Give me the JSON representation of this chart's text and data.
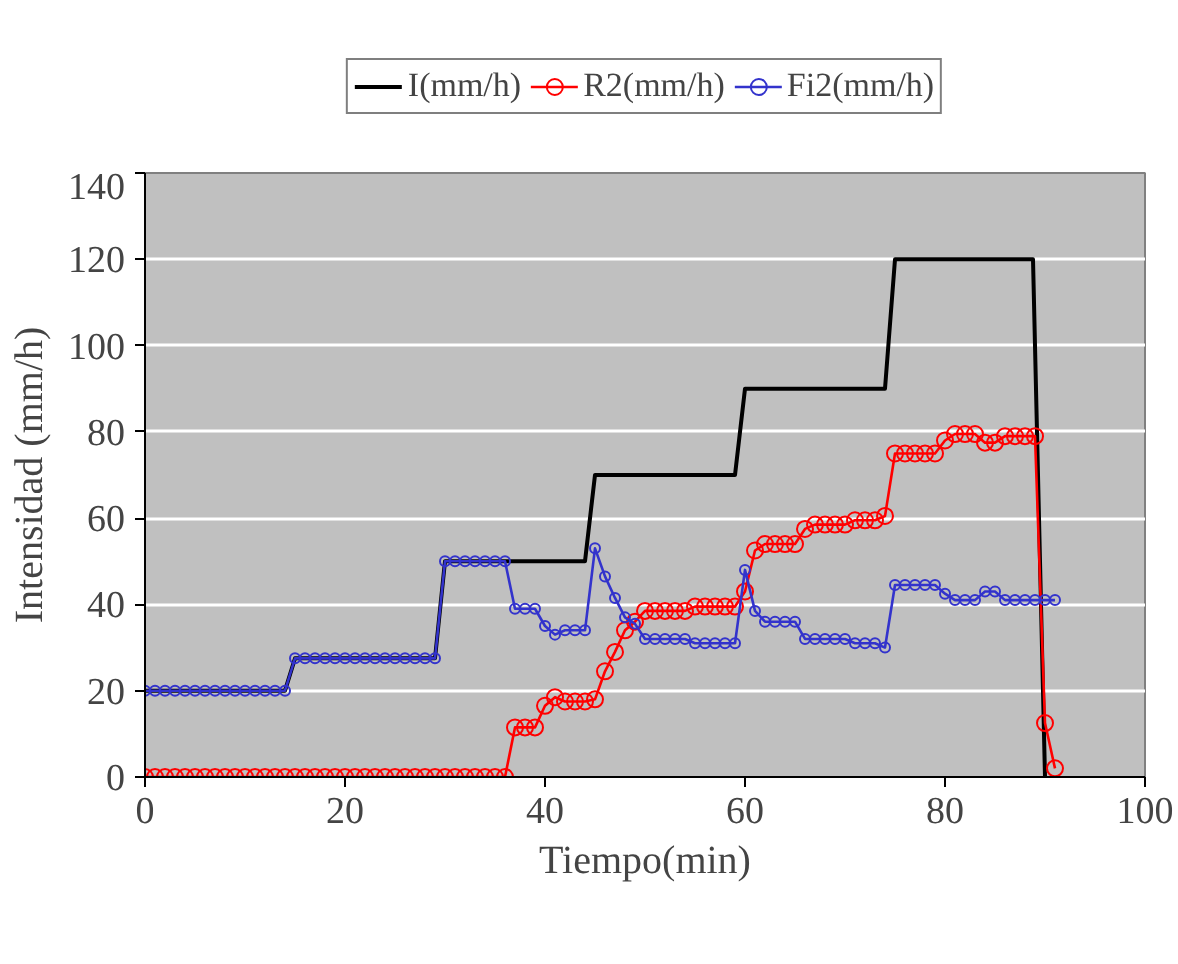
{
  "chart_data": {
    "type": "line",
    "xlabel": "Tiempo(min)",
    "ylabel": "Intensidad (mm/h)",
    "xlim": [
      0,
      100
    ],
    "ylim": [
      0,
      140
    ],
    "xticks": [
      0,
      20,
      40,
      60,
      80,
      100
    ],
    "yticks": [
      0,
      20,
      40,
      60,
      80,
      100,
      120,
      140
    ],
    "grid": "y",
    "legend": "top",
    "line_style": "solid",
    "series": [
      {
        "name": "I(mm/h)",
        "color": "#000000",
        "marker": "none",
        "x": [
          0,
          14,
          15,
          29,
          30,
          44,
          45,
          59,
          60,
          74,
          75,
          88.8,
          90
        ],
        "values": [
          20,
          20,
          27.5,
          27.5,
          50,
          50,
          70,
          70,
          90,
          90,
          120,
          120,
          0
        ]
      },
      {
        "name": "R2(mm/h)",
        "color": "#ff0000",
        "marker": "circle",
        "x": [
          0,
          1,
          2,
          3,
          4,
          5,
          6,
          7,
          8,
          9,
          10,
          11,
          12,
          13,
          14,
          15,
          16,
          17,
          18,
          19,
          20,
          21,
          22,
          23,
          24,
          25,
          26,
          27,
          28,
          29,
          30,
          31,
          32,
          33,
          34,
          35,
          36,
          37,
          38,
          39,
          40,
          41,
          42,
          43,
          44,
          45,
          46,
          47,
          48,
          49,
          50,
          51,
          52,
          53,
          54,
          55,
          56,
          57,
          58,
          59,
          60,
          61,
          62,
          63,
          64,
          65,
          66,
          67,
          68,
          69,
          70,
          71,
          72,
          73,
          74,
          75,
          76,
          77,
          78,
          79,
          80,
          81,
          82,
          83,
          84,
          85,
          86,
          87,
          88,
          89,
          90,
          91
        ],
        "values": [
          0,
          0,
          0,
          0,
          0,
          0,
          0,
          0,
          0,
          0,
          0,
          0,
          0,
          0,
          0,
          0,
          0,
          0,
          0,
          0,
          0,
          0,
          0,
          0,
          0,
          0,
          0,
          0,
          0,
          0,
          0,
          0,
          0,
          0,
          0,
          0,
          0,
          11.5,
          11.5,
          11.5,
          16.5,
          18.5,
          17.5,
          17.5,
          17.5,
          18,
          24.5,
          29,
          34,
          36,
          38.5,
          38.5,
          38.5,
          38.5,
          38.5,
          39.5,
          39.5,
          39.5,
          39.5,
          39.5,
          43,
          52.5,
          54,
          54,
          54,
          54,
          57.5,
          58.5,
          58.5,
          58.5,
          58.5,
          59.5,
          59.5,
          59.5,
          60.5,
          75,
          75,
          75,
          75,
          75,
          78,
          79.5,
          79.5,
          79.5,
          77.5,
          77.5,
          79,
          79,
          79,
          79,
          12.5,
          2
        ]
      },
      {
        "name": "Fi2(mm/h)",
        "color": "#3333cc",
        "marker": "circle",
        "x": [
          0,
          1,
          2,
          3,
          4,
          5,
          6,
          7,
          8,
          9,
          10,
          11,
          12,
          13,
          14,
          15,
          16,
          17,
          18,
          19,
          20,
          21,
          22,
          23,
          24,
          25,
          26,
          27,
          28,
          29,
          30,
          31,
          32,
          33,
          34,
          35,
          36,
          37,
          38,
          39,
          40,
          41,
          42,
          43,
          44,
          45,
          46,
          47,
          48,
          49,
          50,
          51,
          52,
          53,
          54,
          55,
          56,
          57,
          58,
          59,
          60,
          61,
          62,
          63,
          64,
          65,
          66,
          67,
          68,
          69,
          70,
          71,
          72,
          73,
          74,
          75,
          76,
          77,
          78,
          79,
          80,
          81,
          82,
          83,
          84,
          85,
          86,
          87,
          88,
          89,
          90,
          91
        ],
        "values": [
          20,
          20,
          20,
          20,
          20,
          20,
          20,
          20,
          20,
          20,
          20,
          20,
          20,
          20,
          20,
          27.5,
          27.5,
          27.5,
          27.5,
          27.5,
          27.5,
          27.5,
          27.5,
          27.5,
          27.5,
          27.5,
          27.5,
          27.5,
          27.5,
          27.5,
          50,
          50,
          50,
          50,
          50,
          50,
          50,
          39,
          39,
          39,
          35,
          33,
          34,
          34,
          34,
          53,
          46.5,
          41.5,
          37,
          35.5,
          32,
          32,
          32,
          32,
          32,
          31,
          31,
          31,
          31,
          31,
          48,
          38.5,
          36,
          36,
          36,
          36,
          32,
          32,
          32,
          32,
          32,
          31,
          31,
          31,
          30,
          44.5,
          44.5,
          44.5,
          44.5,
          44.5,
          42.5,
          41,
          41,
          41,
          43,
          43,
          41,
          41,
          41,
          41,
          41,
          41
        ]
      }
    ]
  }
}
